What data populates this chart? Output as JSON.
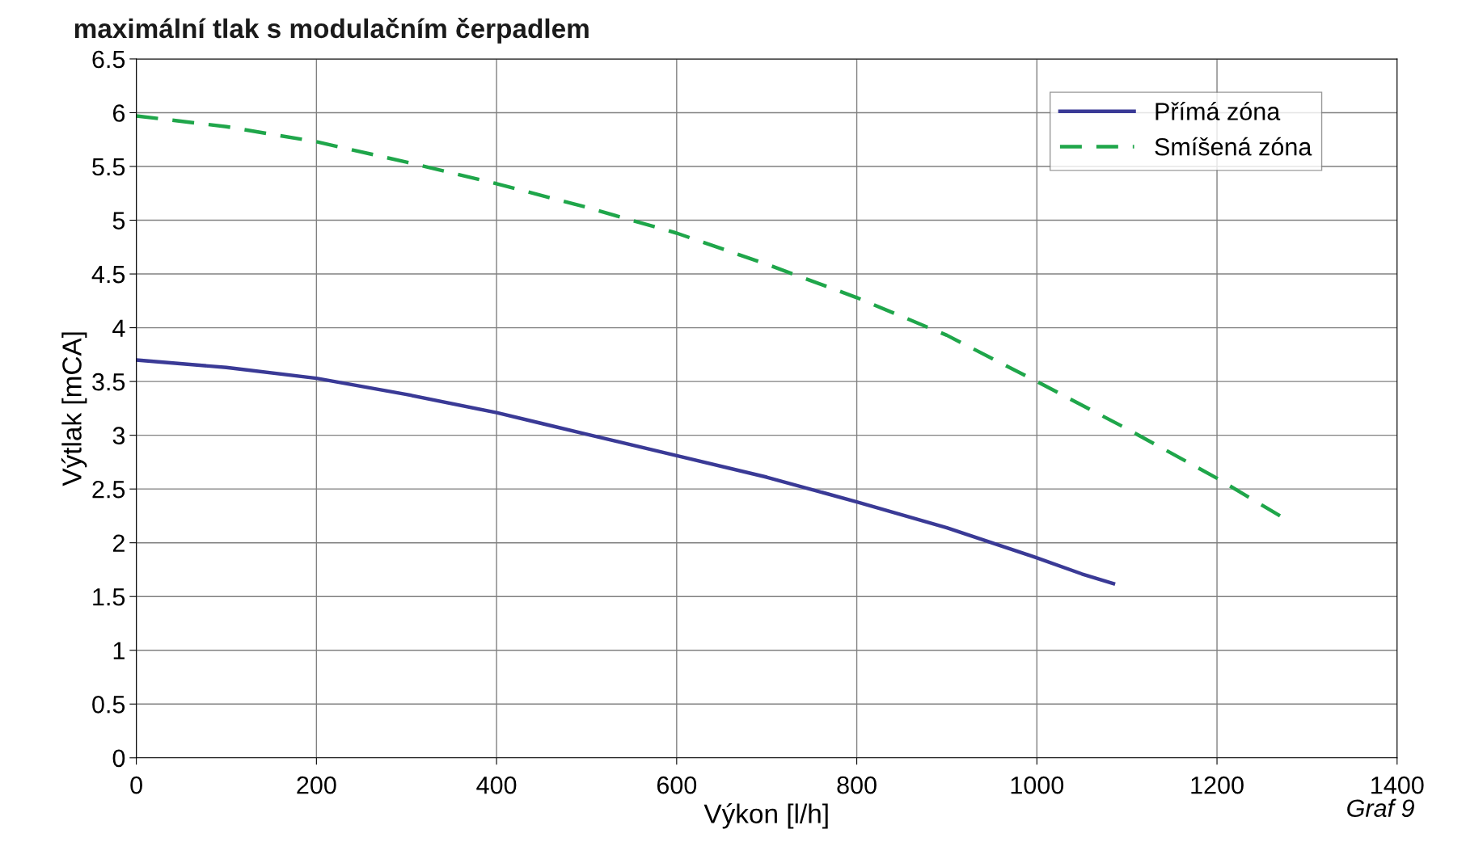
{
  "chart_data": {
    "type": "line",
    "title": "maximální tlak s modulačním čerpadlem",
    "xlabel": "Výkon [l/h]",
    "ylabel": "Výtlak [mCA]",
    "annotations": [
      "Graf 9"
    ],
    "xlim": [
      0,
      1400
    ],
    "xticks": [
      0,
      200,
      400,
      600,
      800,
      1000,
      1200,
      1400
    ],
    "ylim": [
      0,
      6.5
    ],
    "yticks": [
      0,
      0.5,
      1,
      1.5,
      2,
      2.5,
      3,
      3.5,
      4,
      4.5,
      5,
      5.5,
      6,
      6.5
    ],
    "grid": true,
    "legend": "top right",
    "series": [
      {
        "name": "Přímá zóna",
        "color": "#3a3a96",
        "line_style": "solid",
        "x": [
          0,
          100,
          200,
          300,
          400,
          450,
          500,
          600,
          700,
          800,
          900,
          1000,
          1050,
          1085
        ],
        "values": [
          3.7,
          3.63,
          3.53,
          3.38,
          3.21,
          3.11,
          3.01,
          2.81,
          2.61,
          2.38,
          2.14,
          1.86,
          1.71,
          1.62
        ]
      },
      {
        "name": "Smíšená zóna",
        "color": "#1fa64a",
        "line_style": "dashed",
        "x": [
          0,
          100,
          200,
          300,
          400,
          500,
          600,
          700,
          800,
          900,
          1000,
          1100,
          1200,
          1270
        ],
        "values": [
          5.97,
          5.87,
          5.73,
          5.54,
          5.34,
          5.12,
          4.88,
          4.59,
          4.28,
          3.93,
          3.5,
          3.06,
          2.6,
          2.25
        ]
      }
    ]
  }
}
